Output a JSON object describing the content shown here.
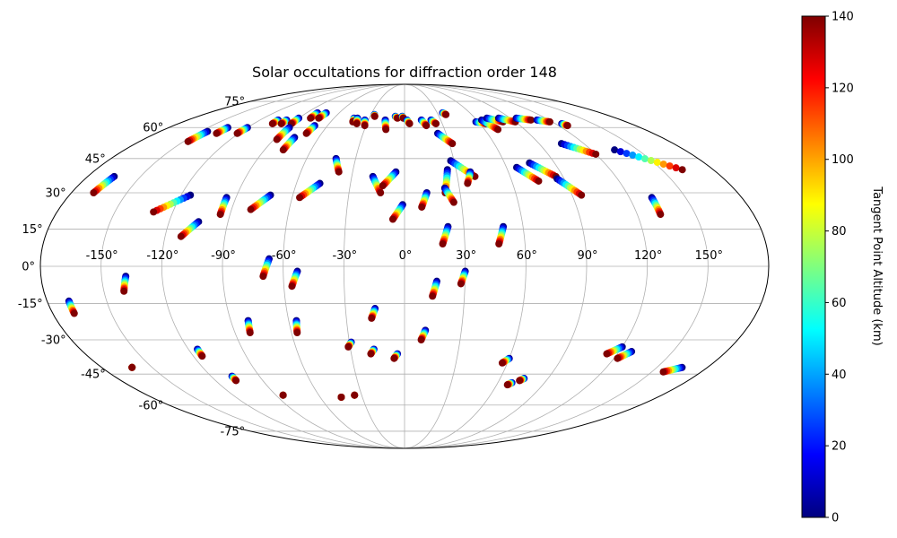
{
  "chart_data": {
    "type": "scatter",
    "projection": "mollweide",
    "title": "Solar occultations for diffraction order 148",
    "grid": true,
    "xlabel": "",
    "ylabel": "",
    "lon_ticks": [
      -150,
      -120,
      -90,
      -60,
      -30,
      0,
      30,
      60,
      90,
      120,
      150
    ],
    "lon_tick_labels": [
      "-150°",
      "-120°",
      "-90°",
      "-60°",
      "-30°",
      "0°",
      "30°",
      "60°",
      "90°",
      "120°",
      "150°"
    ],
    "lat_ticks": [
      -75,
      -60,
      -45,
      -30,
      -15,
      0,
      15,
      30,
      45,
      60,
      75
    ],
    "lat_tick_labels": [
      "-75°",
      "-60°",
      "-45°",
      "-30°",
      "-15°",
      "0°",
      "15°",
      "30°",
      "45°",
      "60°",
      "75°"
    ],
    "colorbar": {
      "label": "Tangent Point Altitude (km)",
      "colormap": "jet",
      "range": [
        0,
        140
      ],
      "ticks": [
        0,
        20,
        40,
        60,
        80,
        100,
        120,
        140
      ],
      "tick_labels": [
        "0",
        "20",
        "40",
        "60",
        "80",
        "100",
        "120",
        "140"
      ]
    },
    "tracks": [
      {
        "lon0": -165,
        "lat0": 37,
        "lon1": -168,
        "lat1": 30
      },
      {
        "lon0": -145,
        "lat0": 58,
        "lon1": -147,
        "lat1": 53
      },
      {
        "lon0": -135,
        "lat0": 60,
        "lon1": -136,
        "lat1": 57
      },
      {
        "lon0": -120,
        "lat0": 60,
        "lon1": -121,
        "lat1": 57
      },
      {
        "lon0": -105,
        "lat0": 64,
        "lon1": -105,
        "lat1": 62
      },
      {
        "lon0": -98,
        "lat0": 64,
        "lon1": -98,
        "lat1": 62
      },
      {
        "lon0": -90,
        "lat0": 65,
        "lon1": -90,
        "lat1": 62
      },
      {
        "lon0": -80,
        "lat0": 68,
        "lon1": -80,
        "lat1": 65
      },
      {
        "lon0": -72,
        "lat0": 68,
        "lon1": -73,
        "lat1": 65
      },
      {
        "lon0": -88,
        "lat0": 60,
        "lon1": -88,
        "lat1": 54
      },
      {
        "lon0": -70,
        "lat0": 61,
        "lon1": -71,
        "lat1": 57
      },
      {
        "lon0": -77,
        "lat0": 55,
        "lon1": -78,
        "lat1": 49
      },
      {
        "lon0": -43,
        "lat0": 65,
        "lon1": -42,
        "lat1": 63
      },
      {
        "lon0": -40,
        "lat0": 65,
        "lon1": -38,
        "lat1": 62
      },
      {
        "lon0": -33,
        "lat0": 64,
        "lon1": -31,
        "lat1": 61
      },
      {
        "lon0": -27,
        "lat0": 67,
        "lon1": -26,
        "lat1": 66
      },
      {
        "lon0": -16,
        "lat0": 64,
        "lon1": -14,
        "lat1": 59
      },
      {
        "lon0": -8,
        "lat0": 66,
        "lon1": -6,
        "lat1": 65
      },
      {
        "lon0": -2,
        "lat0": 66,
        "lon1": -1,
        "lat1": 65
      },
      {
        "lon0": 2,
        "lat0": 64,
        "lon1": 4,
        "lat1": 62
      },
      {
        "lon0": 14,
        "lat0": 64,
        "lon1": 17,
        "lat1": 61
      },
      {
        "lon0": 22,
        "lat0": 64,
        "lon1": 25,
        "lat1": 62
      },
      {
        "lon0": 35,
        "lat0": 68,
        "lon1": 37,
        "lat1": 67
      },
      {
        "lon0": 58,
        "lat0": 63,
        "lon1": 65,
        "lat1": 62
      },
      {
        "lon0": 64,
        "lat0": 64,
        "lon1": 70,
        "lat1": 59
      },
      {
        "lon0": 70,
        "lat0": 65,
        "lon1": 80,
        "lat1": 63
      },
      {
        "lon0": 80,
        "lat0": 65,
        "lon1": 90,
        "lat1": 63
      },
      {
        "lon0": 95,
        "lat0": 65,
        "lon1": 105,
        "lat1": 64
      },
      {
        "lon0": 110,
        "lat0": 64,
        "lon1": 118,
        "lat1": 63
      },
      {
        "lon0": 125,
        "lat0": 62,
        "lon1": 127,
        "lat1": 61
      },
      {
        "lon0": -42,
        "lat0": 45,
        "lon1": -38,
        "lat1": 39
      },
      {
        "lon0": -18,
        "lat0": 37,
        "lon1": -13,
        "lat1": 30
      },
      {
        "lon0": -5,
        "lat0": 39,
        "lon1": -12,
        "lat1": 33
      },
      {
        "lon0": 24,
        "lat0": 57,
        "lon1": 32,
        "lat1": 52
      },
      {
        "lon0": 28,
        "lat0": 44,
        "lon1": 40,
        "lat1": 37
      },
      {
        "lon0": 25,
        "lat0": 40,
        "lon1": 22,
        "lat1": 30
      },
      {
        "lon0": 38,
        "lat0": 39,
        "lon1": 35,
        "lat1": 34
      },
      {
        "lon0": 22,
        "lat0": 32,
        "lon1": 26,
        "lat1": 26
      },
      {
        "lon0": 66,
        "lat0": 41,
        "lon1": 75,
        "lat1": 35
      },
      {
        "lon0": 75,
        "lat0": 43,
        "lon1": 86,
        "lat1": 37
      },
      {
        "lon0": 86,
        "lat0": 36,
        "lon1": 95,
        "lat1": 29
      },
      {
        "lon0": 105,
        "lat0": 52,
        "lon1": 120,
        "lat1": 47
      },
      {
        "lon0": 135,
        "lat0": 49,
        "lon1": 162,
        "lat1": 40
      },
      {
        "lon0": -115,
        "lat0": 29,
        "lon1": -130,
        "lat1": 22
      },
      {
        "lon0": -105,
        "lat0": 18,
        "lon1": -112,
        "lat1": 12
      },
      {
        "lon0": -72,
        "lat0": 29,
        "lon1": -80,
        "lat1": 23
      },
      {
        "lon0": -47,
        "lat0": 34,
        "lon1": -56,
        "lat1": 28
      },
      {
        "lon0": -95,
        "lat0": 28,
        "lon1": -95,
        "lat1": 21
      },
      {
        "lon0": -1,
        "lat0": 25,
        "lon1": -6,
        "lat1": 19
      },
      {
        "lon0": 12,
        "lat0": 30,
        "lon1": 9,
        "lat1": 24
      },
      {
        "lon0": 22,
        "lat0": 16,
        "lon1": 19,
        "lat1": 9
      },
      {
        "lon0": 50,
        "lat0": 16,
        "lon1": 47,
        "lat1": 9
      },
      {
        "lon0": 132,
        "lat0": 28,
        "lon1": 132,
        "lat1": 21
      },
      {
        "lon0": -67,
        "lat0": 3,
        "lon1": -70,
        "lat1": -4
      },
      {
        "lon0": -53,
        "lat0": -2,
        "lon1": -56,
        "lat1": -8
      },
      {
        "lon0": 30,
        "lat0": -2,
        "lon1": 28,
        "lat1": -7
      },
      {
        "lon0": -138,
        "lat0": -4,
        "lon1": -140,
        "lat1": -10
      },
      {
        "lon0": 16,
        "lat0": -6,
        "lon1": 14,
        "lat1": -12
      },
      {
        "lon0": -169,
        "lat0": -14,
        "lon1": -169,
        "lat1": -19
      },
      {
        "lon0": -15,
        "lat0": -17,
        "lon1": -17,
        "lat1": -21
      },
      {
        "lon0": -81,
        "lat0": -22,
        "lon1": -82,
        "lat1": -27
      },
      {
        "lon0": -56,
        "lat0": -22,
        "lon1": -57,
        "lat1": -27
      },
      {
        "lon0": 11,
        "lat0": -26,
        "lon1": 9,
        "lat1": -30
      },
      {
        "lon0": -29,
        "lat0": -31,
        "lon1": -31,
        "lat1": -33
      },
      {
        "lon0": -17,
        "lat0": -34,
        "lon1": -19,
        "lat1": -36
      },
      {
        "lon0": -4,
        "lat0": -36,
        "lon1": -6,
        "lat1": -38
      },
      {
        "lon0": -115,
        "lat0": -34,
        "lon1": -115,
        "lat1": -37
      },
      {
        "lon0": 60,
        "lat0": -38,
        "lon1": 57,
        "lat1": -40
      },
      {
        "lon0": 120,
        "lat0": -33,
        "lon1": 114,
        "lat1": -36
      },
      {
        "lon0": 127,
        "lat0": -35,
        "lon1": 122,
        "lat1": -38
      },
      {
        "lon0": 165,
        "lat0": -42,
        "lon1": 157,
        "lat1": -44
      },
      {
        "lon0": -162,
        "lat0": -42,
        "lon1": -162,
        "lat1": -42
      },
      {
        "lon0": -107,
        "lat0": -46,
        "lon1": -107,
        "lat1": -48
      },
      {
        "lon0": 75,
        "lat0": -47,
        "lon1": 73,
        "lat1": -48
      },
      {
        "lon0": 69,
        "lat0": -49,
        "lon1": 67,
        "lat1": -50
      },
      {
        "lon0": -85,
        "lat0": -55,
        "lon1": -85,
        "lat1": -55
      },
      {
        "lon0": -45,
        "lat0": -56,
        "lon1": -45,
        "lat1": -56
      },
      {
        "lon0": -35,
        "lat0": -55,
        "lon1": -35,
        "lat1": -55
      }
    ]
  }
}
